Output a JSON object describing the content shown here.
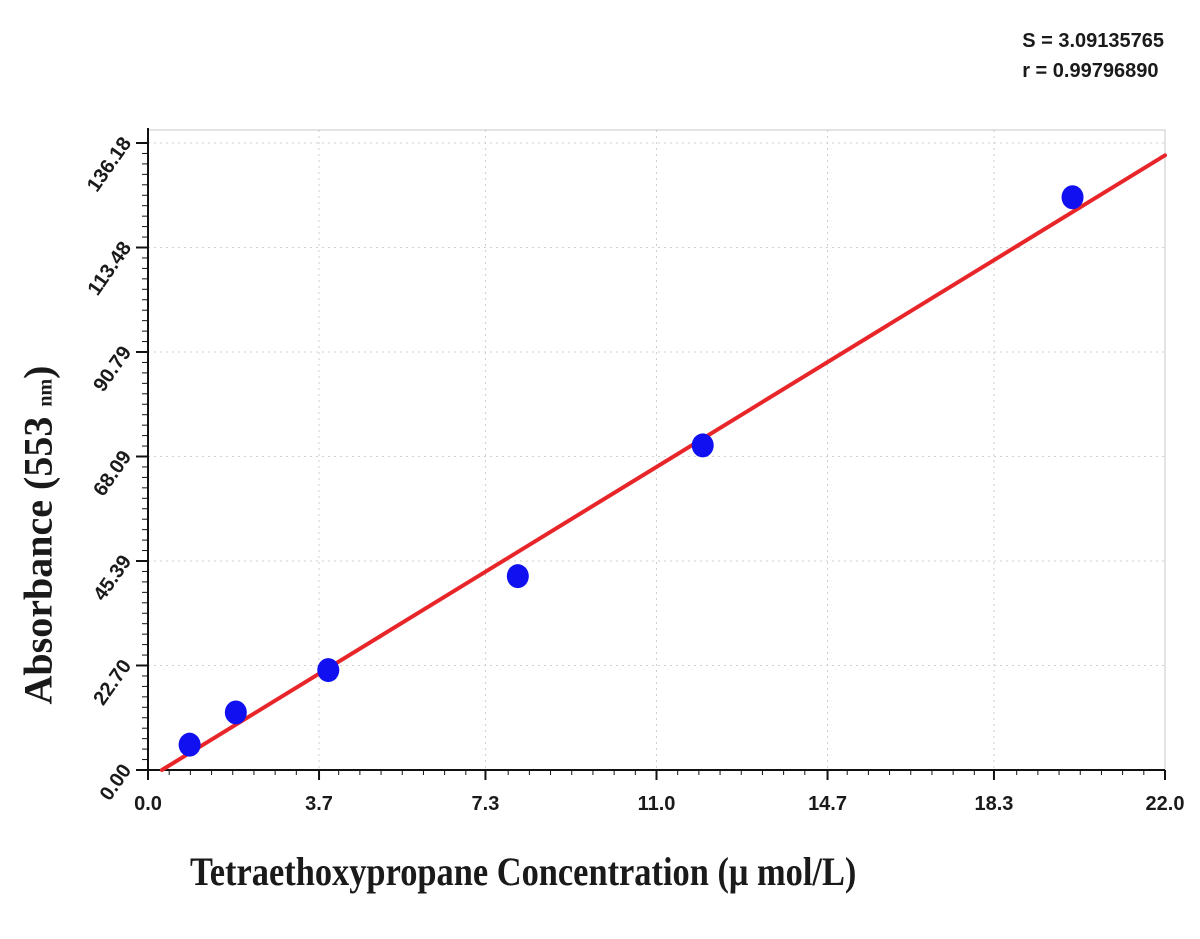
{
  "stats": {
    "s_line": "S = 3.09135765",
    "r_line": "r = 0.99796890"
  },
  "chart_data": {
    "type": "scatter",
    "xlabel": "Tetraethoxypropane Concentration (μ mol/L)",
    "ylabel_main": "Absorbance (553",
    "ylabel_unit": "nm",
    "ylabel_close": ")",
    "xlim": [
      0,
      22
    ],
    "ylim": [
      0,
      136.18
    ],
    "x_ticks": [
      "0.0",
      "3.7",
      "7.3",
      "11.0",
      "14.7",
      "18.3",
      "22.0"
    ],
    "y_ticks": [
      "0.00",
      "22.70",
      "45.39",
      "68.09",
      "90.79",
      "113.48",
      "136.18"
    ],
    "grid": true,
    "series": [
      {
        "points": [
          {
            "x": 0.9,
            "y": 5.5
          },
          {
            "x": 1.9,
            "y": 12.5
          },
          {
            "x": 3.9,
            "y": 21.7
          },
          {
            "x": 8.0,
            "y": 42.1
          },
          {
            "x": 12.0,
            "y": 70.5
          },
          {
            "x": 20.0,
            "y": 124.4
          }
        ],
        "color": "#1010f0"
      }
    ],
    "fit_line": {
      "points": [
        {
          "x": 0.3,
          "y": 0
        },
        {
          "x": 22.0,
          "y": 133.5
        }
      ],
      "color": "#e8262a"
    }
  }
}
